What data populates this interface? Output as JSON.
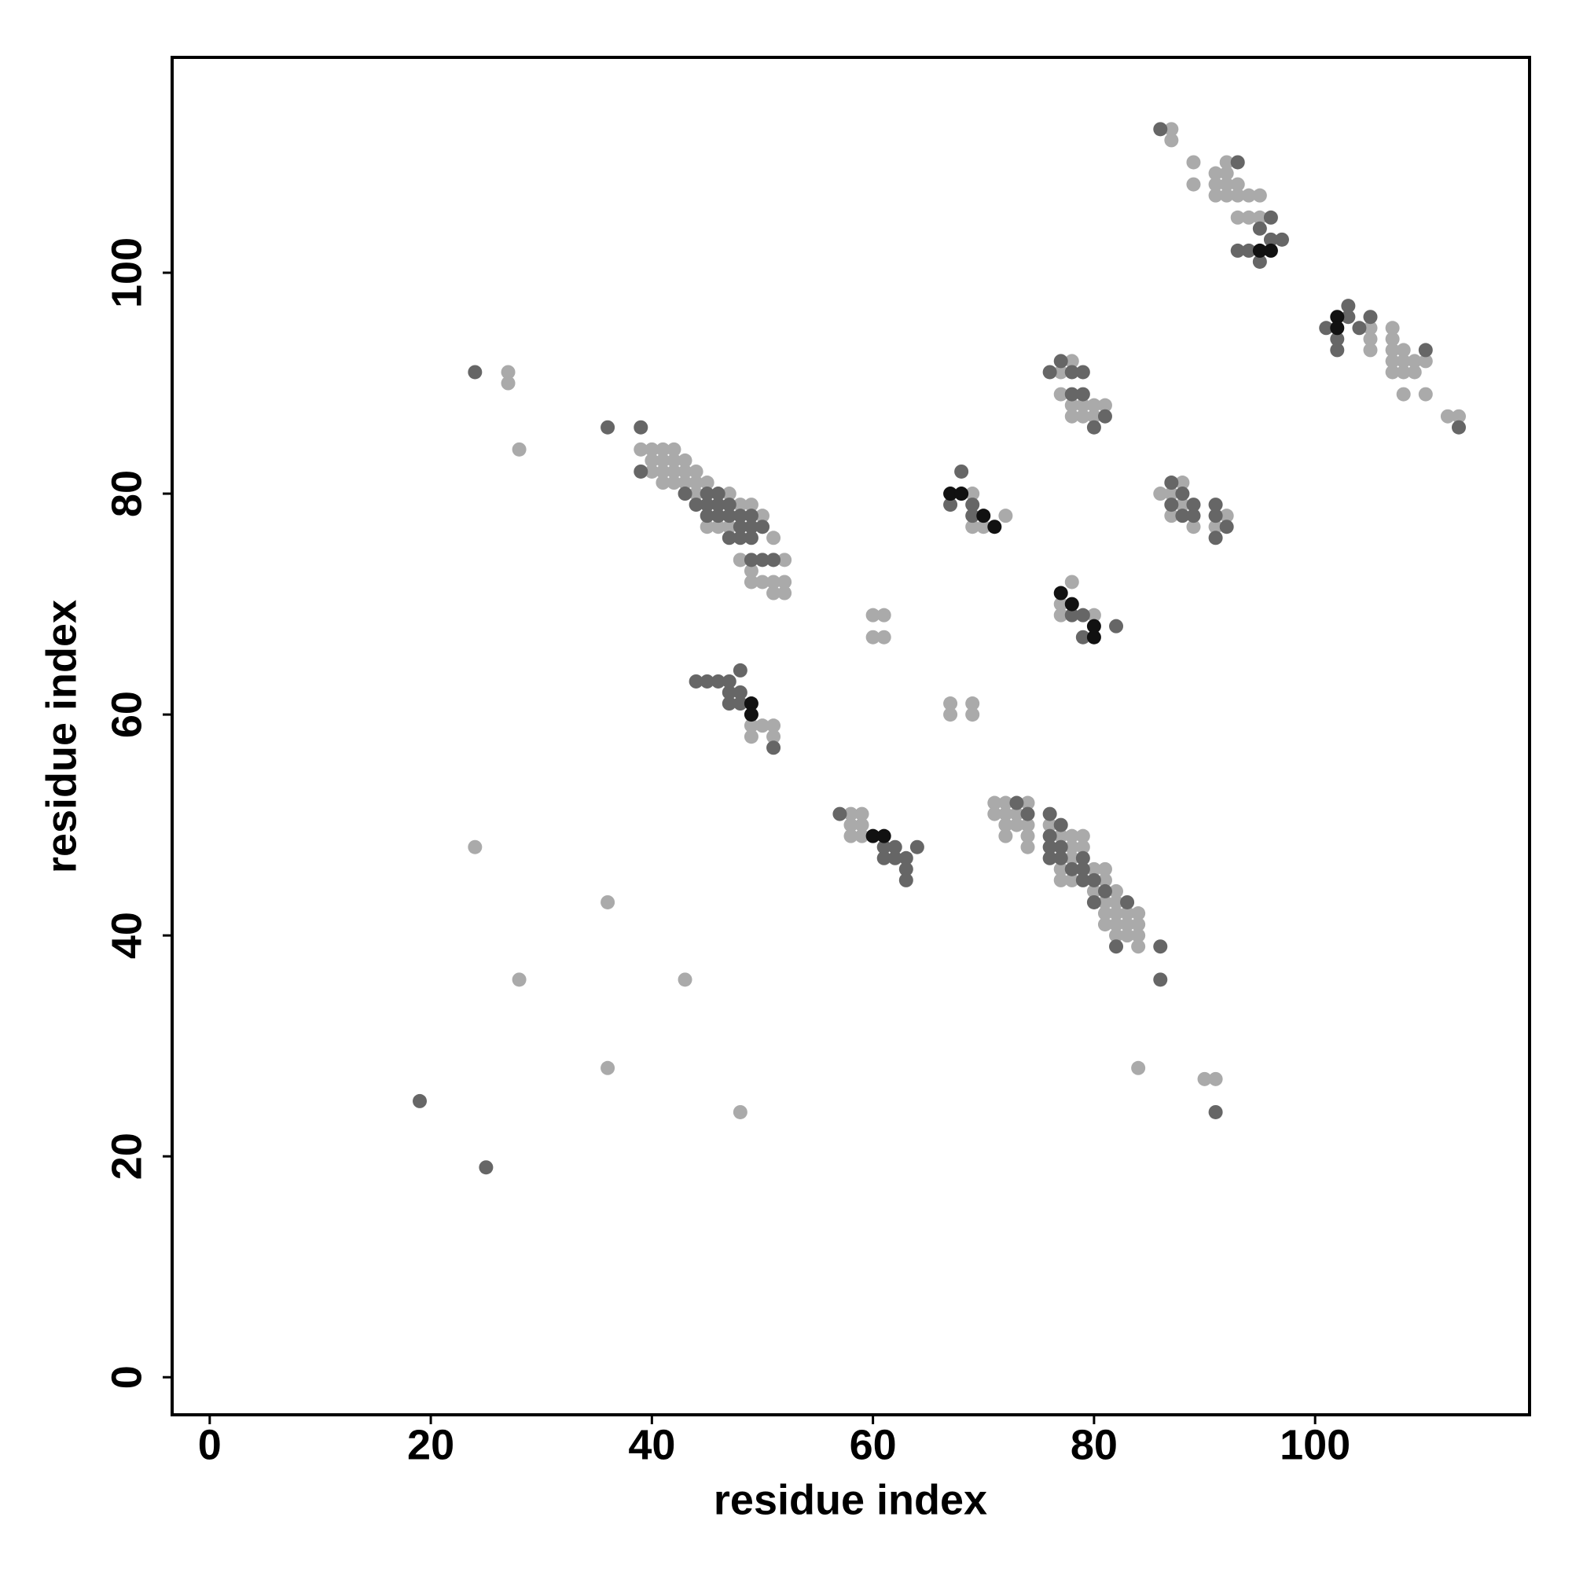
{
  "chart_data": {
    "type": "scatter",
    "x_label": "residue index",
    "y_label": "residue index",
    "xlim": [
      -3.4,
      119.4
    ],
    "ylim": [
      -3.4,
      119.5
    ],
    "xticks": [
      0,
      20,
      40,
      60,
      80,
      100
    ],
    "yticks": [
      0,
      20,
      40,
      60,
      80,
      100
    ],
    "series": [
      {
        "color": "#aaaaaa",
        "x": [
          27,
          27,
          28,
          24,
          36,
          28,
          43,
          36,
          48,
          84,
          90,
          91,
          39,
          40,
          41,
          42,
          40,
          41,
          42,
          43,
          40,
          41,
          42,
          43,
          44,
          41,
          42,
          43,
          44,
          45,
          44,
          47,
          48,
          45,
          46,
          47,
          48,
          49,
          50,
          50,
          51,
          48,
          51,
          52,
          49,
          49,
          50,
          51,
          52,
          51,
          52,
          49,
          50,
          51,
          49,
          51,
          58,
          59,
          58,
          59,
          58,
          59,
          60,
          61,
          60,
          61,
          67,
          69,
          67,
          69,
          69,
          72,
          69,
          70,
          78,
          77,
          77,
          80,
          78,
          77,
          77,
          78,
          79,
          80,
          81,
          78,
          79,
          80,
          71,
          72,
          74,
          71,
          72,
          73,
          72,
          73,
          74,
          72,
          74,
          76,
          77,
          78,
          79,
          74,
          78,
          79,
          78,
          77,
          80,
          81,
          77,
          78,
          81,
          80,
          82,
          81,
          82,
          81,
          82,
          83,
          84,
          81,
          82,
          83,
          84,
          82,
          83,
          84,
          84,
          86,
          88,
          87,
          88,
          87,
          92,
          89,
          91,
          87,
          87,
          89,
          92,
          91,
          92,
          89,
          91,
          92,
          93,
          91,
          92,
          93,
          94,
          95,
          93,
          94,
          95,
          105,
          105,
          105,
          107,
          107,
          107,
          108,
          108,
          107,
          109,
          110,
          107,
          108,
          109,
          108,
          110,
          112,
          113
        ],
        "y": [
          91,
          90,
          84,
          48,
          43,
          36,
          36,
          28,
          24,
          28,
          27,
          27,
          84,
          84,
          84,
          84,
          83,
          83,
          83,
          83,
          82,
          82,
          82,
          82,
          82,
          81,
          81,
          81,
          81,
          81,
          80,
          80,
          79,
          77,
          77,
          77,
          74,
          79,
          78,
          77,
          76,
          74,
          74,
          74,
          73,
          72,
          72,
          72,
          72,
          71,
          71,
          59,
          59,
          59,
          58,
          58,
          51,
          51,
          50,
          50,
          49,
          49,
          69,
          69,
          67,
          67,
          61,
          61,
          60,
          60,
          80,
          78,
          77,
          77,
          72,
          70,
          69,
          69,
          92,
          91,
          89,
          88,
          88,
          88,
          88,
          87,
          87,
          87,
          52,
          52,
          52,
          51,
          51,
          51,
          50,
          50,
          50,
          49,
          49,
          50,
          49,
          49,
          49,
          48,
          48,
          48,
          47,
          46,
          46,
          46,
          45,
          45,
          45,
          44,
          44,
          43,
          43,
          42,
          42,
          42,
          42,
          41,
          41,
          41,
          41,
          40,
          40,
          40,
          39,
          80,
          81,
          80,
          79,
          78,
          78,
          77,
          77,
          113,
          112,
          110,
          110,
          109,
          109,
          108,
          108,
          108,
          108,
          107,
          107,
          107,
          107,
          107,
          105,
          105,
          105,
          95,
          94,
          93,
          95,
          94,
          93,
          93,
          92,
          92,
          92,
          92,
          91,
          91,
          91,
          89,
          89,
          87,
          87
        ]
      },
      {
        "color": "#666666",
        "x": [
          19,
          25,
          24,
          36,
          91,
          86,
          86,
          82,
          39,
          39,
          43,
          45,
          46,
          44,
          45,
          46,
          47,
          45,
          46,
          47,
          48,
          49,
          48,
          49,
          50,
          47,
          48,
          49,
          49,
          50,
          51,
          44,
          45,
          46,
          47,
          48,
          47,
          48,
          47,
          48,
          51,
          57,
          61,
          62,
          64,
          61,
          62,
          63,
          63,
          63,
          68,
          67,
          69,
          69,
          78,
          79,
          82,
          79,
          76,
          77,
          78,
          79,
          78,
          79,
          81,
          80,
          73,
          74,
          76,
          77,
          76,
          76,
          77,
          76,
          77,
          79,
          78,
          79,
          79,
          80,
          81,
          80,
          83,
          87,
          88,
          87,
          89,
          91,
          88,
          89,
          91,
          92,
          91,
          86,
          93,
          96,
          95,
          96,
          97,
          93,
          94,
          95,
          101,
          102,
          102,
          103,
          103,
          104,
          105,
          110,
          113
        ],
        "y": [
          25,
          19,
          91,
          86,
          24,
          39,
          36,
          39,
          86,
          82,
          80,
          80,
          80,
          79,
          79,
          79,
          79,
          78,
          78,
          78,
          78,
          78,
          77,
          77,
          77,
          76,
          76,
          76,
          74,
          74,
          74,
          63,
          63,
          63,
          63,
          64,
          62,
          62,
          61,
          61,
          57,
          51,
          48,
          48,
          48,
          47,
          47,
          47,
          46,
          45,
          82,
          79,
          79,
          78,
          69,
          69,
          68,
          67,
          91,
          92,
          91,
          91,
          89,
          89,
          87,
          86,
          52,
          51,
          51,
          50,
          49,
          48,
          48,
          47,
          47,
          47,
          46,
          46,
          45,
          45,
          44,
          43,
          43,
          81,
          80,
          79,
          79,
          79,
          78,
          78,
          78,
          77,
          76,
          113,
          110,
          105,
          104,
          103,
          103,
          102,
          102,
          101,
          95,
          94,
          93,
          97,
          96,
          95,
          96,
          93,
          86
        ]
      },
      {
        "color": "#111111",
        "x": [
          49,
          49,
          60,
          61,
          67,
          68,
          70,
          71,
          77,
          78,
          80,
          80,
          95,
          96,
          102,
          102
        ],
        "y": [
          61,
          60,
          49,
          49,
          80,
          80,
          78,
          77,
          71,
          70,
          68,
          67,
          102,
          102,
          96,
          95
        ]
      }
    ]
  }
}
